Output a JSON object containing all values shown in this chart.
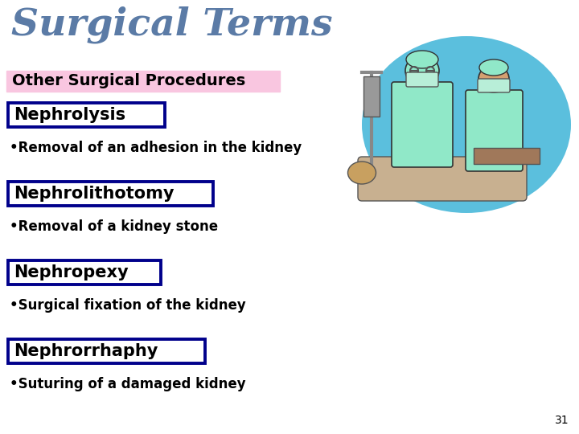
{
  "title": "Surgical Terms",
  "title_color": "#5B7BA6",
  "title_fontsize": 34,
  "background_color": "#FFFFFF",
  "header_text": "Other Surgical Procedures",
  "header_bg": "#F9C6E0",
  "header_text_color": "#000000",
  "header_fontsize": 14,
  "terms": [
    {
      "term": "Nephrolysis",
      "description": "•Removal of an adhesion in the kidney"
    },
    {
      "term": "Nephrolithotomy",
      "description": "•Removal of a kidney stone"
    },
    {
      "term": "Nephropexy",
      "description": "•Surgical fixation of the kidney"
    },
    {
      "term": "Nephrorrhaphy",
      "description": "•Suturing of a damaged kidney"
    }
  ],
  "term_box_color": "#FFFFFF",
  "term_box_edge": "#00008B",
  "term_fontsize": 15,
  "term_text_color": "#000000",
  "desc_fontsize": 12,
  "desc_text_color": "#000000",
  "page_number": "31",
  "page_num_color": "#000000",
  "page_num_fontsize": 10,
  "illus_blob_color": "#5BBFDD",
  "illus_scrub_color": "#90E8C8",
  "illus_skin_color": "#D4A070",
  "illus_mask_color": "#B8EED8"
}
